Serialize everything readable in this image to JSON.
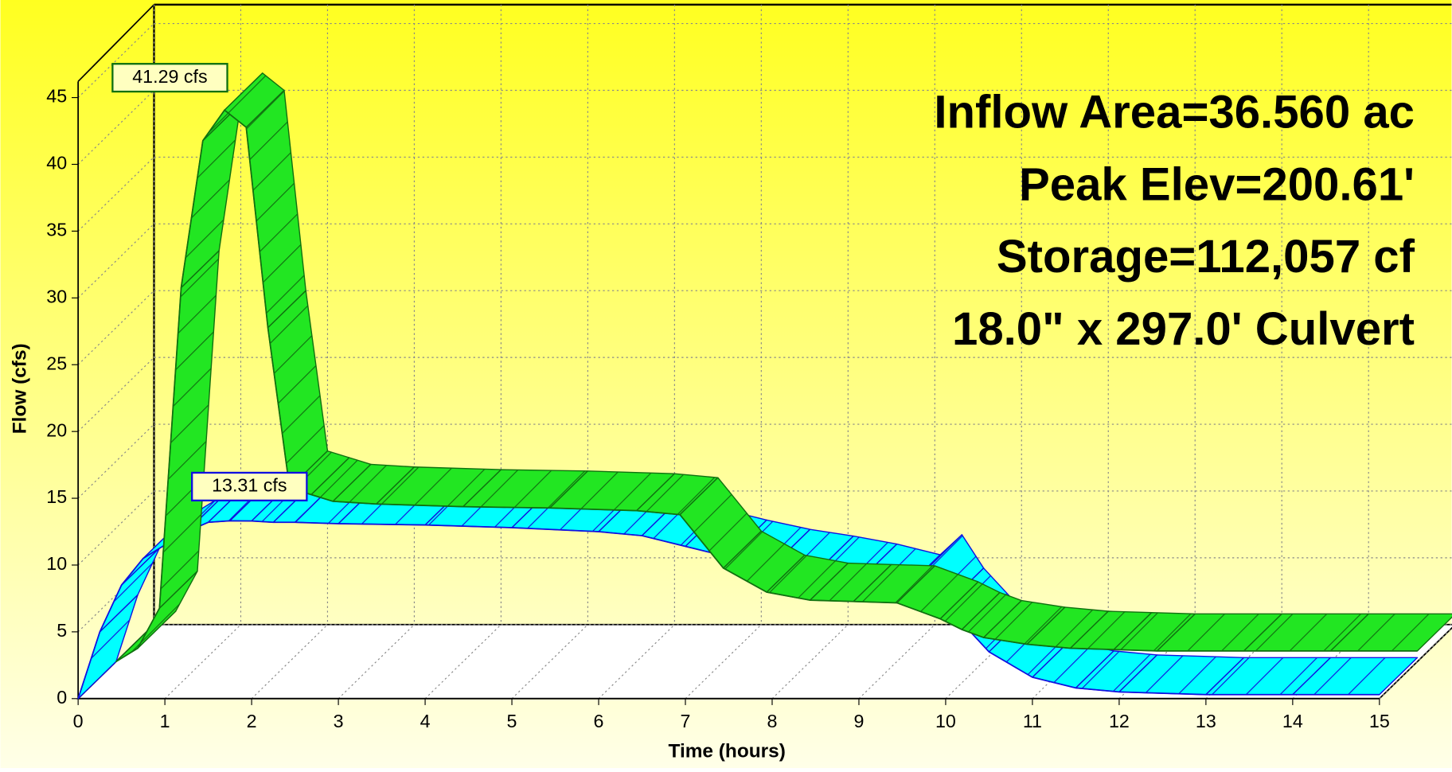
{
  "chart_data": {
    "type": "ribbon3d",
    "annotations": [
      "Inflow Area=36.560 ac",
      "Peak Elev=200.61'",
      "Storage=112,057 cf",
      "18.0\" x 297.0' Culvert"
    ],
    "xlabel": "Time  (hours)",
    "ylabel": "Flow  (cfs)",
    "x": [
      0,
      0.25,
      0.5,
      0.75,
      1,
      1.25,
      1.5,
      1.75,
      2,
      2.25,
      2.5,
      3,
      4,
      5,
      6,
      6.5,
      7,
      7.5,
      8,
      8.5,
      9,
      9.5,
      9.75,
      10,
      10.5,
      11,
      11.5,
      12,
      13,
      14,
      15
    ],
    "series": [
      {
        "color": "#22e622",
        "edge_color": "#107010",
        "peak_label": "41.29 cfs",
        "values": [
          0,
          1,
          4,
          28,
          39,
          41.29,
          40,
          25,
          13,
          12.5,
          12,
          11.8,
          11.6,
          11.5,
          11.3,
          11,
          7,
          5.2,
          4.6,
          4.5,
          4.4,
          3.2,
          2.4,
          1.8,
          1.3,
          1.0,
          0.9,
          0.8,
          0.8,
          0.8,
          0.8
        ]
      },
      {
        "color": "#00ffff",
        "edge_color": "#1010e0",
        "peak_label": "13.31 cfs",
        "values": [
          0,
          5,
          8.5,
          10.5,
          11.5,
          12.5,
          13.2,
          13.31,
          13.3,
          13.2,
          13.2,
          13.1,
          13.0,
          12.8,
          12.5,
          12.2,
          11.4,
          10.6,
          9.9,
          9.4,
          8.8,
          8.0,
          9.5,
          7,
          3.5,
          1.6,
          0.8,
          0.5,
          0.3,
          0.3,
          0.3
        ]
      }
    ],
    "xlim": [
      0,
      15
    ],
    "xticks": [
      0,
      1,
      2,
      3,
      4,
      5,
      6,
      7,
      8,
      9,
      10,
      11,
      12,
      13,
      14,
      15
    ],
    "ylim": [
      0,
      46
    ],
    "yticks": [
      0,
      5,
      10,
      15,
      20,
      25,
      30,
      35,
      40,
      45
    ],
    "grid": true
  }
}
